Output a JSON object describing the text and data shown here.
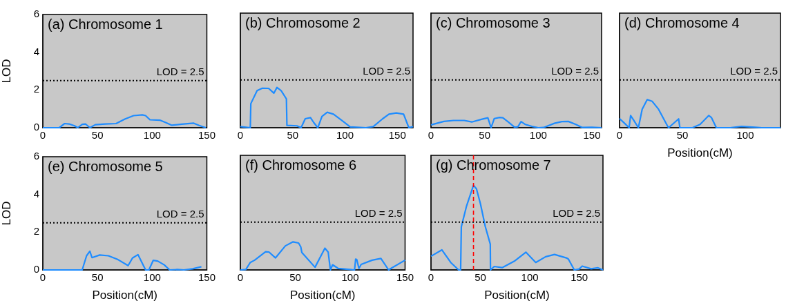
{
  "chart_data": [
    {
      "type": "line",
      "title": "(a) Chromosome 1",
      "ylabel": "LOD",
      "color": "#1e8cff",
      "xlim": [
        0,
        150
      ],
      "xticks": [
        0,
        50,
        100,
        150
      ],
      "ylim": [
        0,
        6
      ],
      "yticks": [
        0,
        2,
        4,
        6
      ],
      "grid": false,
      "marker": "none",
      "line_style": "solid",
      "x": [
        0,
        15,
        20,
        24,
        29,
        32,
        36,
        39,
        43,
        48,
        57,
        67,
        75,
        83,
        91,
        94,
        98,
        107,
        112,
        118,
        127,
        138,
        143,
        149
      ],
      "values": [
        0,
        0,
        0.22,
        0.2,
        0.1,
        0,
        0.18,
        0.2,
        0,
        0.16,
        0.2,
        0.22,
        0.46,
        0.64,
        0.68,
        0.64,
        0.42,
        0.4,
        0.28,
        0.13,
        0.19,
        0.24,
        0.12,
        0
      ],
      "ref_lines": [
        {
          "axis": "y",
          "value": 2.5,
          "label": "LOD = 2.5",
          "color": "#000000",
          "line_style": "dotted"
        }
      ]
    },
    {
      "type": "line",
      "title": "(b) Chromosome 2",
      "color": "#1e8cff",
      "xlim": [
        0,
        165
      ],
      "xticks": [
        0,
        50,
        100,
        150
      ],
      "ylim": [
        0,
        6
      ],
      "yticks": [
        0,
        2,
        4,
        6
      ],
      "tick_labels": "x",
      "grid": false,
      "marker": "none",
      "line_style": "solid",
      "x": [
        0,
        9.5,
        10,
        16,
        21,
        27,
        32,
        35,
        39,
        44,
        44.5,
        54,
        58,
        62,
        67,
        70,
        74,
        78,
        83,
        89,
        98,
        105,
        120,
        127,
        136,
        142,
        149,
        156,
        161,
        165
      ],
      "values": [
        0.06,
        0,
        1.26,
        1.94,
        2.07,
        2.06,
        1.81,
        2.11,
        1.94,
        1.51,
        0.12,
        0.1,
        0,
        0.47,
        0.53,
        0.28,
        0,
        0.59,
        0.81,
        0.71,
        0.34,
        0.04,
        0,
        0.06,
        0.47,
        0.71,
        0.77,
        0.71,
        0,
        0.06
      ],
      "ref_lines": [
        {
          "axis": "y",
          "value": 2.5,
          "label": "LOD = 2.5",
          "color": "#000000",
          "line_style": "dotted"
        }
      ]
    },
    {
      "type": "line",
      "title": "(c) Chromosome 3",
      "color": "#1e8cff",
      "xlim": [
        0,
        159
      ],
      "xticks": [
        0,
        50,
        100,
        150
      ],
      "ylim": [
        0,
        6
      ],
      "yticks": [
        0,
        2,
        4,
        6
      ],
      "tick_labels": "x",
      "grid": false,
      "marker": "none",
      "line_style": "solid",
      "x": [
        0,
        12,
        21,
        31,
        38,
        47,
        53,
        56,
        59,
        64,
        67,
        72,
        78,
        81,
        84,
        88,
        94,
        100,
        105,
        115,
        122,
        128,
        135,
        141,
        150,
        159
      ],
      "values": [
        0.15,
        0.33,
        0.38,
        0.38,
        0.3,
        0.44,
        0.52,
        0,
        0.48,
        0.54,
        0.52,
        0.3,
        0.02,
        0.05,
        0.32,
        0.17,
        0.07,
        0,
        0.01,
        0.23,
        0.32,
        0.33,
        0.17,
        0.01,
        0.02,
        0
      ],
      "ref_lines": [
        {
          "axis": "y",
          "value": 2.5,
          "label": "LOD = 2.5",
          "color": "#000000",
          "line_style": "dotted"
        }
      ]
    },
    {
      "type": "line",
      "title": "(d) Chromosome 4",
      "xlabel": "Position(cM)",
      "color": "#1e8cff",
      "xlim": [
        0,
        128
      ],
      "xticks": [
        0,
        50,
        100
      ],
      "ylim": [
        0,
        6
      ],
      "yticks": [
        0,
        2,
        4,
        6
      ],
      "tick_labels": "x",
      "grid": false,
      "marker": "none",
      "line_style": "solid",
      "x": [
        0,
        4,
        7.6,
        8.8,
        11,
        15,
        18,
        22,
        26,
        31,
        38,
        39,
        47,
        48,
        58,
        64,
        71,
        73,
        77,
        88,
        97,
        108,
        113,
        128
      ],
      "values": [
        0.48,
        0.23,
        0,
        0.64,
        0.42,
        0,
        0.97,
        1.47,
        1.38,
        0.97,
        0.11,
        0,
        0.46,
        0,
        0,
        0.17,
        0.64,
        0.54,
        0,
        0,
        0.07,
        0.02,
        0,
        0
      ],
      "ref_lines": [
        {
          "axis": "y",
          "value": 2.5,
          "label": "LOD = 2.5",
          "color": "#000000",
          "line_style": "dotted"
        }
      ]
    },
    {
      "type": "line",
      "title": "(e) Chromosome 5",
      "xlabel": "Position(cM)",
      "ylabel": "LOD",
      "color": "#1e8cff",
      "xlim": [
        0,
        150
      ],
      "xticks": [
        0,
        50,
        100,
        150
      ],
      "ylim": [
        0,
        6
      ],
      "yticks": [
        0,
        2,
        4,
        6
      ],
      "grid": false,
      "marker": "none",
      "line_style": "solid",
      "x": [
        0,
        36,
        40,
        43,
        45,
        52,
        60,
        68,
        78,
        82,
        87,
        94,
        97,
        101,
        105,
        111,
        116,
        123,
        129,
        137,
        145
      ],
      "values": [
        0,
        0,
        0.75,
        0.99,
        0.65,
        0.79,
        0.75,
        0.57,
        0.23,
        0.63,
        0.81,
        0,
        0,
        0.51,
        0.47,
        0.27,
        0,
        0.02,
        0,
        0.06,
        0.17
      ],
      "ref_lines": [
        {
          "axis": "y",
          "value": 2.5,
          "label": "LOD = 2.5",
          "color": "#000000",
          "line_style": "dotted"
        }
      ]
    },
    {
      "type": "line",
      "title": "(f) Chromosome 6",
      "xlabel": "Position(cM)",
      "color": "#1e8cff",
      "xlim": [
        0,
        150
      ],
      "xticks": [
        0,
        50,
        100,
        150
      ],
      "ylim": [
        0,
        6
      ],
      "yticks": [
        0,
        2,
        4,
        6
      ],
      "tick_labels": "x",
      "grid": false,
      "marker": "none",
      "line_style": "solid",
      "x": [
        0,
        5,
        9,
        13,
        23,
        26,
        32,
        41,
        48,
        53,
        55,
        56,
        68,
        77,
        80,
        82,
        84,
        89,
        104,
        105,
        106,
        108,
        110,
        120,
        128,
        135,
        138,
        150
      ],
      "values": [
        0,
        0.02,
        0.39,
        0.51,
        0.95,
        0.94,
        0.63,
        1.26,
        1.47,
        1.41,
        1.21,
        0.91,
        0.14,
        1.14,
        0.93,
        0,
        0.27,
        0.08,
        0,
        0.57,
        0.54,
        0.08,
        0.29,
        0.51,
        0.6,
        0,
        0.11,
        0.51
      ],
      "ref_lines": [
        {
          "axis": "y",
          "value": 2.5,
          "label": "LOD = 2.5",
          "color": "#000000",
          "line_style": "dotted"
        }
      ]
    },
    {
      "type": "line",
      "title": "(g) Chromosome 7",
      "xlabel": "Position(cM)",
      "color": "#1e8cff",
      "xlim": [
        0,
        174
      ],
      "xticks": [
        0,
        50,
        100,
        150
      ],
      "ylim": [
        0,
        6
      ],
      "yticks": [
        0,
        2,
        4,
        6
      ],
      "tick_labels": "x",
      "grid": false,
      "marker": "none",
      "line_style": "solid",
      "x": [
        0,
        11,
        20,
        28,
        30,
        30.7,
        36,
        43,
        46,
        50,
        55,
        60,
        60.2,
        64,
        72,
        85,
        96,
        106,
        116,
        125,
        137,
        139,
        145,
        150,
        153,
        162,
        169,
        174
      ],
      "values": [
        0.72,
        1.05,
        0.39,
        0,
        0,
        2.26,
        3.35,
        4.43,
        4.25,
        3.47,
        2.26,
        1.35,
        0,
        0.18,
        0.12,
        0.48,
        0.93,
        0.39,
        0.69,
        0.81,
        0.63,
        0.57,
        0,
        0.05,
        0.2,
        0.06,
        0.11,
        0
      ],
      "ref_lines": [
        {
          "axis": "y",
          "value": 2.5,
          "label": "LOD = 2.5",
          "color": "#000000",
          "line_style": "dotted"
        },
        {
          "axis": "x",
          "value": 43,
          "color": "#ff0000",
          "line_style": "dashed"
        }
      ]
    }
  ]
}
